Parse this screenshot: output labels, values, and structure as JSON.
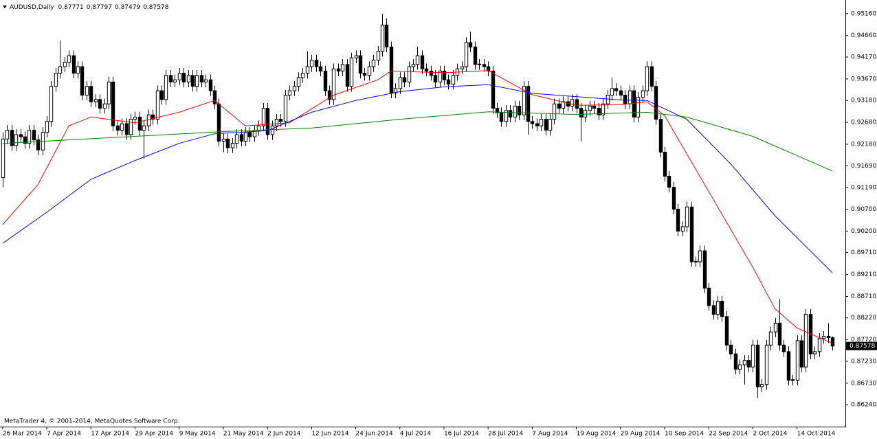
{
  "chart_data": {
    "type": "candlestick",
    "title": "AUDUSD,Daily",
    "footer": "MetaTrader 4, © 2001-2014, MetaQuotes Software Corp.",
    "ylim": [
      0.8574,
      0.9547
    ],
    "xlim": [
      -0.6,
      190.8
    ],
    "yticks": [
      {
        "value": 0.9516,
        "label": "0.95160"
      },
      {
        "value": 0.9466,
        "label": "0.94660"
      },
      {
        "value": 0.9417,
        "label": "0.94170"
      },
      {
        "value": 0.9367,
        "label": "0.93670"
      },
      {
        "value": 0.9318,
        "label": "0.93180"
      },
      {
        "value": 0.9268,
        "label": "0.92680"
      },
      {
        "value": 0.9218,
        "label": "0.92180"
      },
      {
        "value": 0.9169,
        "label": "0.91690"
      },
      {
        "value": 0.9119,
        "label": "0.91190"
      },
      {
        "value": 0.907,
        "label": "0.90700"
      },
      {
        "value": 0.902,
        "label": "0.90200"
      },
      {
        "value": 0.8971,
        "label": "0.89710"
      },
      {
        "value": 0.8921,
        "label": "0.89210"
      },
      {
        "value": 0.8871,
        "label": "0.88710"
      },
      {
        "value": 0.8822,
        "label": "0.88220"
      },
      {
        "value": 0.8772,
        "label": "0.87720"
      },
      {
        "value": 0.8723,
        "label": "0.87230"
      },
      {
        "value": 0.8673,
        "label": "0.86730"
      },
      {
        "value": 0.8624,
        "label": "0.86240"
      }
    ],
    "xticks": [
      {
        "value": 0,
        "label": "26 Mar 2014"
      },
      {
        "value": 10,
        "label": "7 Apr 2014"
      },
      {
        "value": 20,
        "label": "17 Apr 2014"
      },
      {
        "value": 30,
        "label": "29 Apr 2014"
      },
      {
        "value": 40,
        "label": "9 May 2014"
      },
      {
        "value": 50,
        "label": "21 May 2014"
      },
      {
        "value": 60,
        "label": "2 Jun 2014"
      },
      {
        "value": 70,
        "label": "12 Jun 2014"
      },
      {
        "value": 80,
        "label": "24 Jun 2014"
      },
      {
        "value": 90,
        "label": "4 Jul 2014"
      },
      {
        "value": 100,
        "label": "16 Jul 2014"
      },
      {
        "value": 110,
        "label": "28 Jul 2014"
      },
      {
        "value": 120,
        "label": "7 Aug 2014"
      },
      {
        "value": 130,
        "label": "19 Aug 2014"
      },
      {
        "value": 140,
        "label": "29 Aug 2014"
      },
      {
        "value": 150,
        "label": "10 Sep 2014"
      },
      {
        "value": 160,
        "label": "22 Sep 2014"
      },
      {
        "value": 170,
        "label": "2 Oct 2014"
      },
      {
        "value": 180,
        "label": "14 Oct 2014"
      }
    ],
    "up_color": "#ffffff",
    "down_color": "#000000",
    "ohlc": [
      [
        0.9142,
        0.9245,
        0.912,
        0.923
      ],
      [
        0.923,
        0.9262,
        0.9218,
        0.925
      ],
      [
        0.925,
        0.9262,
        0.9203,
        0.9215
      ],
      [
        0.9215,
        0.9252,
        0.9203,
        0.924
      ],
      [
        0.924,
        0.9252,
        0.9223,
        0.9235
      ],
      [
        0.9235,
        0.9247,
        0.9208,
        0.922
      ],
      [
        0.922,
        0.9262,
        0.9208,
        0.925
      ],
      [
        0.925,
        0.9262,
        0.9216,
        0.9228
      ],
      [
        0.9228,
        0.924,
        0.9193,
        0.9205
      ],
      [
        0.9205,
        0.9257,
        0.9193,
        0.9245
      ],
      [
        0.9245,
        0.9282,
        0.9233,
        0.927
      ],
      [
        0.927,
        0.9362,
        0.9258,
        0.935
      ],
      [
        0.935,
        0.9392,
        0.9338,
        0.938
      ],
      [
        0.938,
        0.9455,
        0.9368,
        0.9395
      ],
      [
        0.9395,
        0.9417,
        0.9383,
        0.9405
      ],
      [
        0.9405,
        0.9432,
        0.9393,
        0.942
      ],
      [
        0.942,
        0.9432,
        0.9368,
        0.938
      ],
      [
        0.938,
        0.9407,
        0.9368,
        0.9395
      ],
      [
        0.9395,
        0.9407,
        0.9318,
        0.933
      ],
      [
        0.933,
        0.9362,
        0.9318,
        0.935
      ],
      [
        0.935,
        0.9362,
        0.9303,
        0.9315
      ],
      [
        0.9315,
        0.9332,
        0.9303,
        0.932
      ],
      [
        0.932,
        0.9332,
        0.9288,
        0.93
      ],
      [
        0.93,
        0.9322,
        0.9288,
        0.931
      ],
      [
        0.931,
        0.9372,
        0.9298,
        0.936
      ],
      [
        0.936,
        0.9372,
        0.9248,
        0.926
      ],
      [
        0.926,
        0.9272,
        0.9238,
        0.925
      ],
      [
        0.925,
        0.9277,
        0.9238,
        0.9265
      ],
      [
        0.9265,
        0.9277,
        0.9228,
        0.924
      ],
      [
        0.924,
        0.9287,
        0.9228,
        0.9275
      ],
      [
        0.9275,
        0.9292,
        0.9263,
        0.928
      ],
      [
        0.928,
        0.9292,
        0.9238,
        0.925
      ],
      [
        0.925,
        0.9272,
        0.9185,
        0.926
      ],
      [
        0.926,
        0.9297,
        0.9248,
        0.9285
      ],
      [
        0.9285,
        0.9297,
        0.9263,
        0.9275
      ],
      [
        0.9275,
        0.9352,
        0.9263,
        0.934
      ],
      [
        0.934,
        0.9352,
        0.9308,
        0.932
      ],
      [
        0.932,
        0.9387,
        0.9308,
        0.9375
      ],
      [
        0.9375,
        0.9387,
        0.9348,
        0.936
      ],
      [
        0.936,
        0.9377,
        0.9348,
        0.9365
      ],
      [
        0.9365,
        0.9392,
        0.9353,
        0.938
      ],
      [
        0.938,
        0.9392,
        0.9348,
        0.936
      ],
      [
        0.936,
        0.9387,
        0.9348,
        0.9375
      ],
      [
        0.9375,
        0.9387,
        0.9338,
        0.935
      ],
      [
        0.935,
        0.9387,
        0.9338,
        0.9375
      ],
      [
        0.9375,
        0.9387,
        0.9348,
        0.936
      ],
      [
        0.936,
        0.9377,
        0.9348,
        0.9365
      ],
      [
        0.9365,
        0.9377,
        0.9328,
        0.934
      ],
      [
        0.934,
        0.9352,
        0.9298,
        0.931
      ],
      [
        0.931,
        0.9322,
        0.9213,
        0.9225
      ],
      [
        0.9225,
        0.9242,
        0.92,
        0.923
      ],
      [
        0.923,
        0.9242,
        0.9198,
        0.921
      ],
      [
        0.921,
        0.9232,
        0.9198,
        0.922
      ],
      [
        0.922,
        0.9252,
        0.9208,
        0.924
      ],
      [
        0.924,
        0.9252,
        0.9213,
        0.9225
      ],
      [
        0.9225,
        0.9257,
        0.9213,
        0.9245
      ],
      [
        0.9245,
        0.9257,
        0.9223,
        0.9235
      ],
      [
        0.9235,
        0.9262,
        0.9223,
        0.925
      ],
      [
        0.925,
        0.9272,
        0.9238,
        0.926
      ],
      [
        0.926,
        0.9312,
        0.9248,
        0.93
      ],
      [
        0.93,
        0.9312,
        0.9228,
        0.924
      ],
      [
        0.924,
        0.9272,
        0.9228,
        0.926
      ],
      [
        0.926,
        0.9287,
        0.9248,
        0.9275
      ],
      [
        0.9275,
        0.9287,
        0.9258,
        0.927
      ],
      [
        0.927,
        0.9342,
        0.9258,
        0.933
      ],
      [
        0.933,
        0.9352,
        0.9318,
        0.934
      ],
      [
        0.934,
        0.9362,
        0.9328,
        0.935
      ],
      [
        0.935,
        0.9382,
        0.9338,
        0.937
      ],
      [
        0.937,
        0.9392,
        0.9358,
        0.938
      ],
      [
        0.938,
        0.943,
        0.9368,
        0.9395
      ],
      [
        0.9395,
        0.9422,
        0.9383,
        0.941
      ],
      [
        0.941,
        0.9422,
        0.9383,
        0.9395
      ],
      [
        0.9395,
        0.9407,
        0.9373,
        0.9385
      ],
      [
        0.9385,
        0.9397,
        0.9328,
        0.934
      ],
      [
        0.934,
        0.9352,
        0.9308,
        0.932
      ],
      [
        0.932,
        0.9402,
        0.9308,
        0.939
      ],
      [
        0.939,
        0.9402,
        0.9373,
        0.9385
      ],
      [
        0.9385,
        0.9412,
        0.9373,
        0.94
      ],
      [
        0.94,
        0.9412,
        0.9338,
        0.935
      ],
      [
        0.935,
        0.9427,
        0.9338,
        0.9415
      ],
      [
        0.9415,
        0.9432,
        0.9403,
        0.942
      ],
      [
        0.942,
        0.9432,
        0.9368,
        0.938
      ],
      [
        0.938,
        0.9392,
        0.9363,
        0.9375
      ],
      [
        0.9375,
        0.9407,
        0.9363,
        0.9395
      ],
      [
        0.9395,
        0.9422,
        0.9383,
        0.941
      ],
      [
        0.941,
        0.9442,
        0.9398,
        0.943
      ],
      [
        0.943,
        0.9515,
        0.9418,
        0.949
      ],
      [
        0.949,
        0.9505,
        0.9428,
        0.944
      ],
      [
        0.944,
        0.9452,
        0.9323,
        0.9335
      ],
      [
        0.9335,
        0.9357,
        0.9323,
        0.9345
      ],
      [
        0.9345,
        0.9382,
        0.9333,
        0.937
      ],
      [
        0.937,
        0.9382,
        0.9348,
        0.936
      ],
      [
        0.936,
        0.9407,
        0.9348,
        0.9395
      ],
      [
        0.9395,
        0.9412,
        0.9383,
        0.94
      ],
      [
        0.94,
        0.944,
        0.9388,
        0.942
      ],
      [
        0.942,
        0.9432,
        0.9378,
        0.939
      ],
      [
        0.939,
        0.9402,
        0.9373,
        0.9385
      ],
      [
        0.9385,
        0.9397,
        0.9363,
        0.9375
      ],
      [
        0.9375,
        0.9387,
        0.9348,
        0.936
      ],
      [
        0.936,
        0.9397,
        0.9348,
        0.9385
      ],
      [
        0.9385,
        0.9397,
        0.9353,
        0.9365
      ],
      [
        0.9365,
        0.9377,
        0.9343,
        0.9355
      ],
      [
        0.9355,
        0.9387,
        0.9343,
        0.9375
      ],
      [
        0.9375,
        0.9402,
        0.9363,
        0.939
      ],
      [
        0.939,
        0.9407,
        0.9378,
        0.9395
      ],
      [
        0.9395,
        0.9462,
        0.9383,
        0.945
      ],
      [
        0.945,
        0.9475,
        0.9428,
        0.944
      ],
      [
        0.944,
        0.9452,
        0.9388,
        0.94
      ],
      [
        0.94,
        0.9412,
        0.9388,
        0.9401
      ],
      [
        0.94,
        0.9412,
        0.9383,
        0.9395
      ],
      [
        0.9395,
        0.9407,
        0.9373,
        0.9385
      ],
      [
        0.9385,
        0.9397,
        0.9288,
        0.93
      ],
      [
        0.93,
        0.9312,
        0.9278,
        0.929
      ],
      [
        0.929,
        0.9302,
        0.9258,
        0.927
      ],
      [
        0.927,
        0.9307,
        0.9258,
        0.9295
      ],
      [
        0.9295,
        0.9307,
        0.9268,
        0.928
      ],
      [
        0.928,
        0.9317,
        0.9268,
        0.9305
      ],
      [
        0.9305,
        0.9317,
        0.9273,
        0.9285
      ],
      [
        0.9285,
        0.9362,
        0.9273,
        0.935
      ],
      [
        0.935,
        0.9362,
        0.924,
        0.927
      ],
      [
        0.927,
        0.9282,
        0.9253,
        0.9265
      ],
      [
        0.9265,
        0.9277,
        0.9248,
        0.926
      ],
      [
        0.926,
        0.9287,
        0.9248,
        0.9275
      ],
      [
        0.9275,
        0.9287,
        0.9238,
        0.925
      ],
      [
        0.925,
        0.9287,
        0.9238,
        0.9275
      ],
      [
        0.9275,
        0.9322,
        0.9263,
        0.931
      ],
      [
        0.931,
        0.9322,
        0.9288,
        0.93
      ],
      [
        0.93,
        0.9327,
        0.9288,
        0.9315
      ],
      [
        0.9315,
        0.9327,
        0.9293,
        0.9305
      ],
      [
        0.9305,
        0.9332,
        0.9293,
        0.932
      ],
      [
        0.932,
        0.9332,
        0.9288,
        0.93
      ],
      [
        0.93,
        0.9312,
        0.9225,
        0.928
      ],
      [
        0.928,
        0.9307,
        0.9268,
        0.9295
      ],
      [
        0.9295,
        0.9317,
        0.9283,
        0.9305
      ],
      [
        0.9305,
        0.9317,
        0.9288,
        0.93
      ],
      [
        0.93,
        0.9312,
        0.9273,
        0.9285
      ],
      [
        0.9285,
        0.9322,
        0.9273,
        0.931
      ],
      [
        0.931,
        0.9342,
        0.9298,
        0.933
      ],
      [
        0.933,
        0.937,
        0.9318,
        0.9345
      ],
      [
        0.9345,
        0.9357,
        0.9328,
        0.934
      ],
      [
        0.934,
        0.9352,
        0.9318,
        0.933
      ],
      [
        0.933,
        0.9342,
        0.9298,
        0.931
      ],
      [
        0.931,
        0.9352,
        0.9298,
        0.934
      ],
      [
        0.934,
        0.9352,
        0.9268,
        0.928
      ],
      [
        0.928,
        0.9337,
        0.9268,
        0.9325
      ],
      [
        0.9325,
        0.9352,
        0.9313,
        0.934
      ],
      [
        0.934,
        0.9407,
        0.9328,
        0.9395
      ],
      [
        0.9395,
        0.9407,
        0.9338,
        0.935
      ],
      [
        0.935,
        0.9362,
        0.9263,
        0.9275
      ],
      [
        0.9275,
        0.9287,
        0.9188,
        0.92
      ],
      [
        0.92,
        0.9212,
        0.9133,
        0.9145
      ],
      [
        0.9145,
        0.9157,
        0.9108,
        0.912
      ],
      [
        0.912,
        0.9132,
        0.9058,
        0.907
      ],
      [
        0.907,
        0.9082,
        0.9008,
        0.902
      ],
      [
        0.902,
        0.9042,
        0.9008,
        0.903
      ],
      [
        0.903,
        0.9087,
        0.9018,
        0.9075
      ],
      [
        0.9075,
        0.9087,
        0.8938,
        0.895
      ],
      [
        0.895,
        0.8962,
        0.8938,
        0.8951
      ],
      [
        0.895,
        0.8987,
        0.8938,
        0.8975
      ],
      [
        0.8975,
        0.8987,
        0.8878,
        0.889
      ],
      [
        0.889,
        0.8902,
        0.8838,
        0.885
      ],
      [
        0.885,
        0.8862,
        0.8818,
        0.883
      ],
      [
        0.883,
        0.8872,
        0.8818,
        0.886
      ],
      [
        0.886,
        0.8872,
        0.8813,
        0.8825
      ],
      [
        0.8825,
        0.8837,
        0.8748,
        0.876
      ],
      [
        0.876,
        0.8772,
        0.8728,
        0.874
      ],
      [
        0.874,
        0.8752,
        0.8693,
        0.8705
      ],
      [
        0.8705,
        0.8727,
        0.8693,
        0.8715
      ],
      [
        0.8715,
        0.8737,
        0.867,
        0.8725
      ],
      [
        0.8725,
        0.8737,
        0.8698,
        0.871
      ],
      [
        0.871,
        0.8772,
        0.8698,
        0.876
      ],
      [
        0.876,
        0.8772,
        0.864,
        0.8665
      ],
      [
        0.8665,
        0.8682,
        0.8653,
        0.867
      ],
      [
        0.867,
        0.8772,
        0.8658,
        0.876
      ],
      [
        0.876,
        0.8802,
        0.8748,
        0.879
      ],
      [
        0.879,
        0.8822,
        0.8778,
        0.881
      ],
      [
        0.881,
        0.8865,
        0.8748,
        0.876
      ],
      [
        0.876,
        0.8772,
        0.8733,
        0.8745
      ],
      [
        0.8745,
        0.8757,
        0.8668,
        0.868
      ],
      [
        0.868,
        0.8692,
        0.8668,
        0.8681
      ],
      [
        0.868,
        0.8782,
        0.8668,
        0.877
      ],
      [
        0.877,
        0.8782,
        0.8698,
        0.871
      ],
      [
        0.871,
        0.8842,
        0.8698,
        0.883
      ],
      [
        0.883,
        0.8842,
        0.8728,
        0.874
      ],
      [
        0.874,
        0.8757,
        0.8728,
        0.8745
      ],
      [
        0.8745,
        0.8787,
        0.8733,
        0.8775
      ],
      [
        0.8775,
        0.8792,
        0.8763,
        0.878
      ],
      [
        0.878,
        0.881,
        0.8765,
        0.8777
      ],
      [
        0.87771,
        0.87797,
        0.87479,
        0.87578
      ]
    ],
    "lines": [
      {
        "color": "#ff0000",
        "x": [
          0,
          8,
          15,
          20,
          30,
          40,
          48,
          55,
          65,
          75,
          85,
          88,
          100,
          110,
          120,
          130,
          140,
          146,
          150,
          160,
          170,
          175,
          180,
          188
        ],
        "values": [
          0.9035,
          0.9126,
          0.926,
          0.928,
          0.9267,
          0.9291,
          0.9318,
          0.926,
          0.9267,
          0.933,
          0.9365,
          0.9385,
          0.9381,
          0.9386,
          0.9331,
          0.9307,
          0.9308,
          0.9315,
          0.9283,
          0.911,
          0.8937,
          0.8843,
          0.8799,
          0.8764
        ]
      },
      {
        "color": "#0000ff",
        "x": [
          0,
          10,
          20,
          30,
          40,
          48,
          60,
          70,
          80,
          90,
          100,
          110,
          120,
          140,
          146,
          155,
          165,
          175,
          188
        ],
        "values": [
          0.8992,
          0.9063,
          0.9138,
          0.9181,
          0.922,
          0.9242,
          0.9249,
          0.9291,
          0.9318,
          0.9338,
          0.9349,
          0.9354,
          0.9334,
          0.9319,
          0.9318,
          0.9275,
          0.9173,
          0.9055,
          0.8925
        ]
      },
      {
        "color": "#008000",
        "x": [
          0,
          15,
          30,
          50,
          70,
          90,
          110,
          130,
          146,
          155,
          170,
          188
        ],
        "values": [
          0.922,
          0.9228,
          0.9236,
          0.9247,
          0.9255,
          0.9275,
          0.9292,
          0.9286,
          0.9291,
          0.928,
          0.9236,
          0.9157
        ]
      }
    ]
  }
}
